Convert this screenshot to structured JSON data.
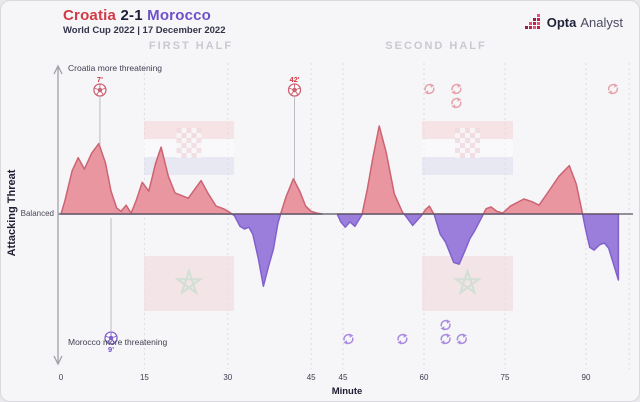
{
  "header": {
    "home": "Croatia",
    "score": "2-1",
    "away": "Morocco",
    "subtitle": "World Cup 2022 | 17 December 2022"
  },
  "brand": {
    "bold": "Opta",
    "light": "Analyst"
  },
  "panels": {
    "first": "FIRST HALF",
    "second": "SECOND HALF"
  },
  "axis": {
    "y_title": "Attacking Threat",
    "top_label": "Croatia more threatening",
    "mid_label": "Balanced",
    "bottom_label": "Morocco more threatening",
    "x_title": "Minute"
  },
  "colors": {
    "croatia_fill": "#EA96A0",
    "croatia_stroke": "#CC6373",
    "morocco_fill": "#9B7EDC",
    "morocco_stroke": "#8161CC",
    "croatia_text": "#D13A46",
    "morocco_text": "#6F50C8",
    "score_text": "#1E1E38",
    "baseline": "#55555F",
    "grid": "#DCDCE2",
    "axis_line": "#A0A0A8",
    "connector": "#BCBCC4",
    "sub_red": "#E5A3AB",
    "sub_purple": "#A98CE0",
    "flag_cro_red": "#F6D4D8",
    "flag_cro_white": "#FCFBFC",
    "flag_cro_blue": "#DCDEEE",
    "flag_check_red": "#ECC6CC",
    "flag_check_white": "#FBF7F8",
    "flag_mar_bg": "#F3DDE0",
    "flag_mar_star": "#C2D6C6"
  },
  "chart_data": {
    "type": "area",
    "title": "Croatia 2-1 Morocco attacking threat momentum",
    "xlabel": "Minute",
    "ylabel": "Attacking Threat",
    "ylim": [
      -100,
      100
    ],
    "x_ticks_first": [
      0,
      15,
      30,
      45
    ],
    "x_ticks_second": [
      45,
      60,
      75,
      90
    ],
    "gridlines_first": [
      15,
      30,
      45
    ],
    "gridlines_second": [
      45,
      60,
      75,
      90,
      98
    ],
    "series": [
      {
        "name": "first_half",
        "points": [
          [
            0,
            0
          ],
          [
            0.7,
            15
          ],
          [
            2,
            49
          ],
          [
            3.1,
            64
          ],
          [
            4.2,
            51
          ],
          [
            5.5,
            69
          ],
          [
            6.8,
            80
          ],
          [
            8,
            58
          ],
          [
            9,
            26
          ],
          [
            10,
            7
          ],
          [
            10.8,
            3
          ],
          [
            11.7,
            10
          ],
          [
            12.6,
            1
          ],
          [
            13.5,
            15
          ],
          [
            14.6,
            36
          ],
          [
            15.8,
            26
          ],
          [
            17,
            57
          ],
          [
            18,
            76
          ],
          [
            19.3,
            43
          ],
          [
            20.5,
            24
          ],
          [
            22.9,
            18
          ],
          [
            25.2,
            38
          ],
          [
            26.5,
            23
          ],
          [
            27.9,
            9
          ],
          [
            29.2,
            6
          ],
          [
            30.3,
            2
          ],
          [
            31.2,
            -2
          ],
          [
            32.2,
            -14
          ],
          [
            33,
            -17
          ],
          [
            33.8,
            -15
          ],
          [
            34.5,
            -23
          ],
          [
            35.5,
            -51
          ],
          [
            36.4,
            -82
          ],
          [
            37.3,
            -60
          ],
          [
            38.2,
            -40
          ],
          [
            39,
            -11
          ],
          [
            39.5,
            0
          ],
          [
            40.5,
            20
          ],
          [
            41.8,
            40
          ],
          [
            43,
            25
          ],
          [
            44,
            9
          ],
          [
            45,
            3
          ],
          [
            46,
            1
          ],
          [
            47,
            0
          ]
        ]
      },
      {
        "name": "second_half",
        "points": [
          [
            44,
            -1
          ],
          [
            44.6,
            -9
          ],
          [
            45.4,
            -15
          ],
          [
            46.3,
            -9
          ],
          [
            47.2,
            -14
          ],
          [
            48.5,
            -1
          ],
          [
            49.5,
            28
          ],
          [
            50.5,
            63
          ],
          [
            51.7,
            100
          ],
          [
            53,
            70
          ],
          [
            54.5,
            23
          ],
          [
            56,
            2
          ],
          [
            56.6,
            -2
          ],
          [
            57.9,
            -13
          ],
          [
            59.5,
            -2
          ],
          [
            60.3,
            5
          ],
          [
            61,
            9
          ],
          [
            61.9,
            -1
          ],
          [
            63,
            -23
          ],
          [
            64,
            -32
          ],
          [
            65.5,
            -55
          ],
          [
            66.5,
            -57
          ],
          [
            67.5,
            -43
          ],
          [
            68.5,
            -28
          ],
          [
            69.3,
            -20
          ],
          [
            70.5,
            -6
          ],
          [
            71.5,
            6
          ],
          [
            72.4,
            8
          ],
          [
            73.5,
            3
          ],
          [
            74.6,
            1
          ],
          [
            76,
            9
          ],
          [
            78.5,
            17
          ],
          [
            80,
            14
          ],
          [
            81.3,
            10
          ],
          [
            83,
            25
          ],
          [
            85,
            43
          ],
          [
            86.9,
            55
          ],
          [
            88.2,
            34
          ],
          [
            89.3,
            2
          ],
          [
            89.9,
            -17
          ],
          [
            90.7,
            -38
          ],
          [
            91.5,
            -41
          ],
          [
            92.5,
            -35
          ],
          [
            93.4,
            -33
          ],
          [
            94.2,
            -39
          ],
          [
            95.2,
            -59
          ],
          [
            96,
            -75
          ]
        ]
      }
    ],
    "events": {
      "goals": [
        {
          "team": "croatia",
          "half": "first",
          "minute": 7,
          "label": "7'"
        },
        {
          "team": "morocco",
          "half": "first",
          "minute": 9,
          "label": "9'"
        },
        {
          "team": "croatia",
          "half": "first",
          "minute": 42,
          "label": "42'"
        }
      ],
      "subs": [
        {
          "team": "croatia",
          "half": "second",
          "minute": 61,
          "row": 0
        },
        {
          "team": "croatia",
          "half": "second",
          "minute": 66,
          "row": 0
        },
        {
          "team": "croatia",
          "half": "second",
          "minute": 66,
          "row": 1
        },
        {
          "team": "croatia",
          "half": "second",
          "minute": 95,
          "row": 0
        },
        {
          "team": "morocco",
          "half": "second",
          "minute": 46,
          "row": 0
        },
        {
          "team": "morocco",
          "half": "second",
          "minute": 56,
          "row": 0
        },
        {
          "team": "morocco",
          "half": "second",
          "minute": 64,
          "row": 1
        },
        {
          "team": "morocco",
          "half": "second",
          "minute": 64,
          "row": 0
        },
        {
          "team": "morocco",
          "half": "second",
          "minute": 67,
          "row": 0
        }
      ]
    }
  }
}
